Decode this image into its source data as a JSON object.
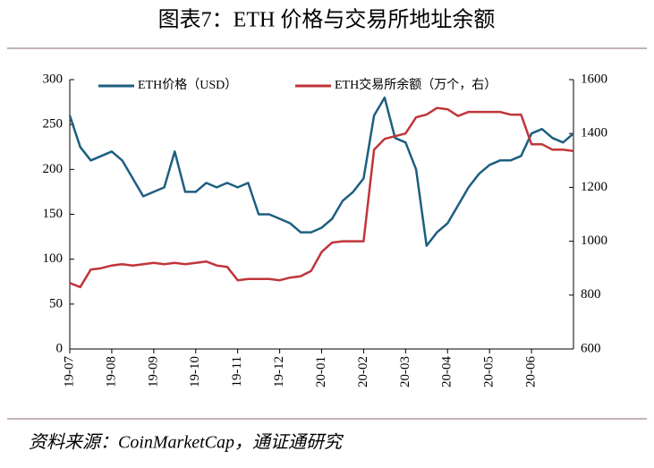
{
  "chart_data": {
    "type": "line",
    "title": "图表7：ETH 价格与交易所地址余额",
    "source": "资料来源：CoinMarketCap，通证通研究",
    "categories": [
      "19-07",
      null,
      null,
      null,
      "19-08",
      null,
      null,
      null,
      "19-09",
      null,
      null,
      null,
      "19-10",
      null,
      null,
      null,
      "19-11",
      null,
      null,
      null,
      "19-12",
      null,
      null,
      null,
      "20-01",
      null,
      null,
      null,
      "20-02",
      null,
      null,
      null,
      "20-03",
      null,
      null,
      null,
      "20-04",
      null,
      null,
      null,
      "20-05",
      null,
      null,
      null,
      "20-06",
      null,
      null,
      null,
      null
    ],
    "series": [
      {
        "name": "ETH价格（USD）",
        "color": "#1d5f80",
        "axis": "y",
        "values": [
          260,
          225,
          210,
          215,
          220,
          210,
          190,
          170,
          175,
          180,
          220,
          175,
          175,
          185,
          180,
          185,
          180,
          185,
          150,
          150,
          145,
          140,
          130,
          130,
          135,
          145,
          165,
          175,
          190,
          260,
          280,
          235,
          230,
          200,
          115,
          130,
          140,
          160,
          180,
          195,
          205,
          210,
          210,
          215,
          240,
          245,
          235,
          230,
          240
        ]
      },
      {
        "name": "ETH交易所余额（万个，右）",
        "color": "#c0353a",
        "axis": "y2",
        "values": [
          845,
          830,
          895,
          900,
          910,
          915,
          910,
          915,
          920,
          915,
          920,
          915,
          920,
          925,
          910,
          905,
          855,
          860,
          860,
          860,
          855,
          865,
          870,
          890,
          960,
          995,
          1000,
          1000,
          1000,
          1340,
          1380,
          1390,
          1400,
          1460,
          1470,
          1495,
          1490,
          1465,
          1480,
          1480,
          1480,
          1480,
          1470,
          1470,
          1360,
          1360,
          1340,
          1340,
          1335
        ]
      }
    ],
    "ylim": [
      0,
      300
    ],
    "yticks": [
      0,
      50,
      100,
      150,
      200,
      250,
      300
    ],
    "y2lim": [
      600,
      1600
    ],
    "y2ticks": [
      600,
      800,
      1000,
      1200,
      1400,
      1600
    ]
  }
}
